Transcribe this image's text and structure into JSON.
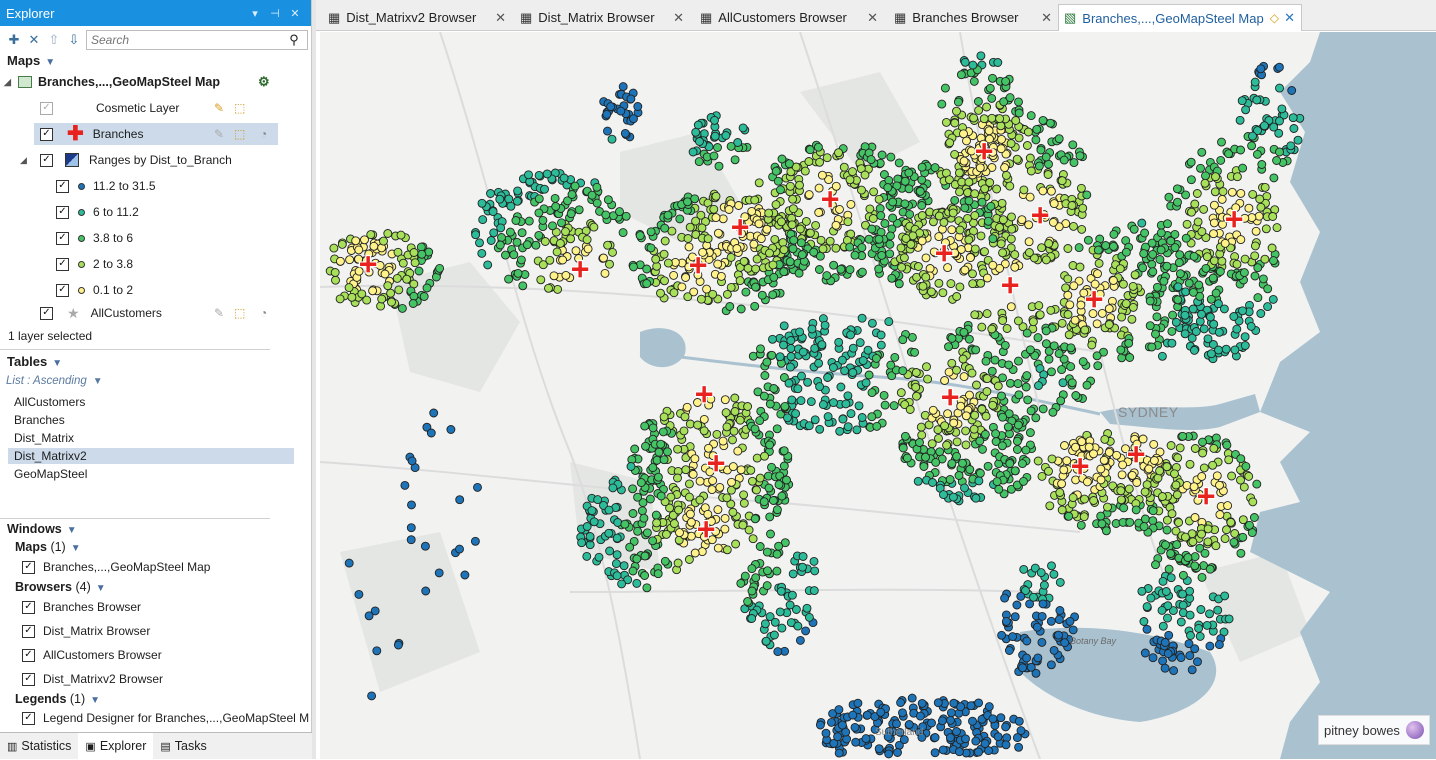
{
  "explorer": {
    "title": "Explorer",
    "search_placeholder": "Search",
    "maps_header": "Maps",
    "map_name": "Branches,...,GeoMapSteel Map",
    "layers": {
      "cosmetic": "Cosmetic Layer",
      "branches": "Branches",
      "ranges": "Ranges by Dist_to_Branch",
      "allcustomers": "AllCustomers"
    },
    "ranges": [
      {
        "label": "11.2 to 31.5",
        "color": "#1e74b8"
      },
      {
        "label": "6 to 11.2",
        "color": "#2cbc9a"
      },
      {
        "label": "3.8 to 6",
        "color": "#45c466"
      },
      {
        "label": "2 to 3.8",
        "color": "#a8e05a"
      },
      {
        "label": "0.1 to 2",
        "color": "#fff28a"
      }
    ],
    "layer_status": "1 layer selected",
    "tables_header": "Tables",
    "tables_sort": "List : Ascending",
    "tables": [
      "AllCustomers",
      "Branches",
      "Dist_Matrix",
      "Dist_Matrixv2",
      "GeoMapSteel"
    ],
    "selected_table": "Dist_Matrixv2",
    "windows_header": "Windows",
    "windows_maps_label": "Maps",
    "windows_maps_count": "(1)",
    "windows_maps": [
      "Branches,...,GeoMapSteel Map"
    ],
    "windows_browsers_label": "Browsers",
    "windows_browsers_count": "(4)",
    "windows_browsers": [
      "Branches Browser",
      "Dist_Matrix Browser",
      "AllCustomers Browser",
      "Dist_Matrixv2 Browser"
    ],
    "windows_legends_label": "Legends",
    "windows_legends_count": "(1)",
    "windows_legends": [
      "Legend Designer for Branches,...,GeoMapSteel M"
    ]
  },
  "bottom_tabs": [
    "Statistics",
    "Explorer",
    "Tasks"
  ],
  "doc_tabs": [
    "Dist_Matrixv2 Browser",
    "Dist_Matrix Browser",
    "AllCustomers Browser",
    "Branches Browser",
    "Branches,...,GeoMapSteel Map"
  ],
  "map": {
    "labels": {
      "city": "SYDNEY",
      "bay": "Botany Bay",
      "suburb_s": "Sutherland"
    },
    "branch_color": "#e8231f",
    "water_color": "#aac2d0",
    "logo_text": "pitney bowes"
  }
}
